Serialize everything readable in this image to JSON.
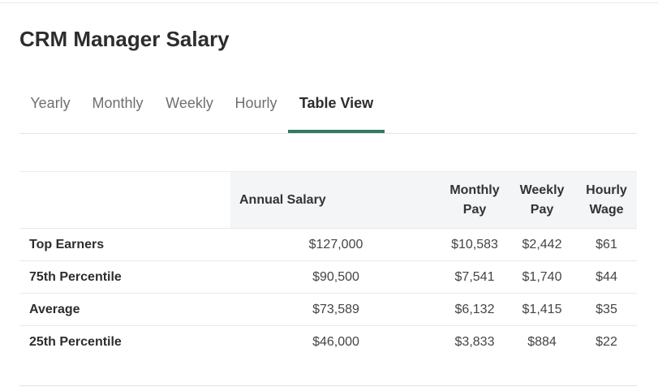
{
  "page": {
    "title": "CRM Manager Salary"
  },
  "tabs": [
    {
      "label": "Yearly",
      "active": false
    },
    {
      "label": "Monthly",
      "active": false
    },
    {
      "label": "Weekly",
      "active": false
    },
    {
      "label": "Hourly",
      "active": false
    },
    {
      "label": "Table View",
      "active": true
    }
  ],
  "colors": {
    "active_tab_underline": "#2f7d5f",
    "header_bg": "#f4f5f6"
  },
  "table": {
    "headers": {
      "annual": "Annual Salary",
      "monthly_1": "Monthly",
      "monthly_2": "Pay",
      "weekly_1": "Weekly",
      "weekly_2": "Pay",
      "hourly_1": "Hourly",
      "hourly_2": "Wage"
    },
    "rows": [
      {
        "label": "Top Earners",
        "annual": "$127,000",
        "monthly": "$10,583",
        "weekly": "$2,442",
        "hourly": "$61"
      },
      {
        "label": "75th Percentile",
        "annual": "$90,500",
        "monthly": "$7,541",
        "weekly": "$1,740",
        "hourly": "$44"
      },
      {
        "label": "Average",
        "annual": "$73,589",
        "monthly": "$6,132",
        "weekly": "$1,415",
        "hourly": "$35"
      },
      {
        "label": "25th Percentile",
        "annual": "$46,000",
        "monthly": "$3,833",
        "weekly": "$884",
        "hourly": "$22"
      }
    ]
  }
}
